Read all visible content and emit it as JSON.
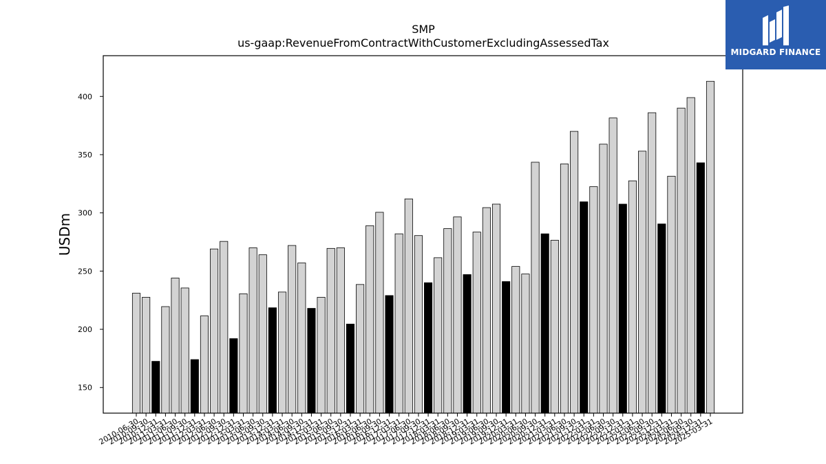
{
  "logo": {
    "text": "MIDGARD FINANCE",
    "icon": "midgard-logo-icon",
    "background": "#2a5db0"
  },
  "chart_data": {
    "type": "bar",
    "title": "SMP",
    "subtitle": "us-gaap:RevenueFromContractWithCustomerExcludingAssessedTax",
    "ylabel": "USDm",
    "xlabel": "",
    "ylim": [
      128,
      435
    ],
    "yticks": [
      150,
      200,
      250,
      300,
      350,
      400
    ],
    "grid": false,
    "colors": {
      "quarter": "#d3d3d3",
      "fiscal_year": "#000000",
      "edge": "#000000"
    },
    "categories": [
      "2010-06-30",
      "2010-09-30",
      "2010-12-31",
      "2011-03-31",
      "2011-06-30",
      "2011-09-30",
      "2011-12-31",
      "2012-03-31",
      "2012-06-30",
      "2012-09-30",
      "2012-12-31",
      "2013-03-31",
      "2013-06-30",
      "2013-09-30",
      "2013-12-31",
      "2014-03-31",
      "2014-06-30",
      "2014-09-30",
      "2014-12-31",
      "2015-03-31",
      "2015-06-30",
      "2015-09-30",
      "2015-12-31",
      "2016-03-31",
      "2016-06-30",
      "2016-09-30",
      "2016-12-31",
      "2017-03-31",
      "2017-06-30",
      "2017-09-30",
      "2017-12-31",
      "2018-03-31",
      "2018-06-30",
      "2018-09-30",
      "2018-12-31",
      "2019-03-31",
      "2019-06-30",
      "2019-09-30",
      "2019-12-31",
      "2020-03-31",
      "2020-06-30",
      "2020-09-30",
      "2020-12-31",
      "2021-03-31",
      "2021-06-30",
      "2021-09-30",
      "2021-12-31",
      "2022-03-31",
      "2022-06-30",
      "2022-09-30",
      "2022-12-31",
      "2023-03-31",
      "2023-06-30",
      "2023-09-30",
      "2023-12-31",
      "2024-03-31",
      "2024-06-30",
      "2024-09-30",
      "2024-12-31",
      "2025-03-31"
    ],
    "values": [
      231,
      227.5,
      172.5,
      219.5,
      244,
      235.5,
      174,
      211.5,
      269,
      275.5,
      192,
      230.5,
      270,
      264,
      218.5,
      232,
      272,
      257,
      218,
      227.5,
      269.5,
      270,
      204.5,
      238.5,
      289,
      300.5,
      229,
      282,
      312,
      280.5,
      240,
      261.5,
      286.5,
      296.5,
      247,
      283.5,
      304.5,
      307.5,
      241,
      254,
      247.5,
      343.5,
      282,
      276.5,
      342,
      370,
      309.5,
      322.5,
      359,
      381.5,
      307.5,
      327.5,
      353,
      386,
      290.5,
      331.5,
      390,
      399,
      343,
      413
    ],
    "fiscal_year_flags": [
      false,
      false,
      true,
      false,
      false,
      false,
      true,
      false,
      false,
      false,
      true,
      false,
      false,
      false,
      true,
      false,
      false,
      false,
      true,
      false,
      false,
      false,
      true,
      false,
      false,
      false,
      true,
      false,
      false,
      false,
      true,
      false,
      false,
      false,
      true,
      false,
      false,
      false,
      true,
      false,
      false,
      false,
      true,
      false,
      false,
      false,
      true,
      false,
      false,
      false,
      true,
      false,
      false,
      false,
      true,
      false,
      false,
      false,
      true,
      false
    ]
  }
}
